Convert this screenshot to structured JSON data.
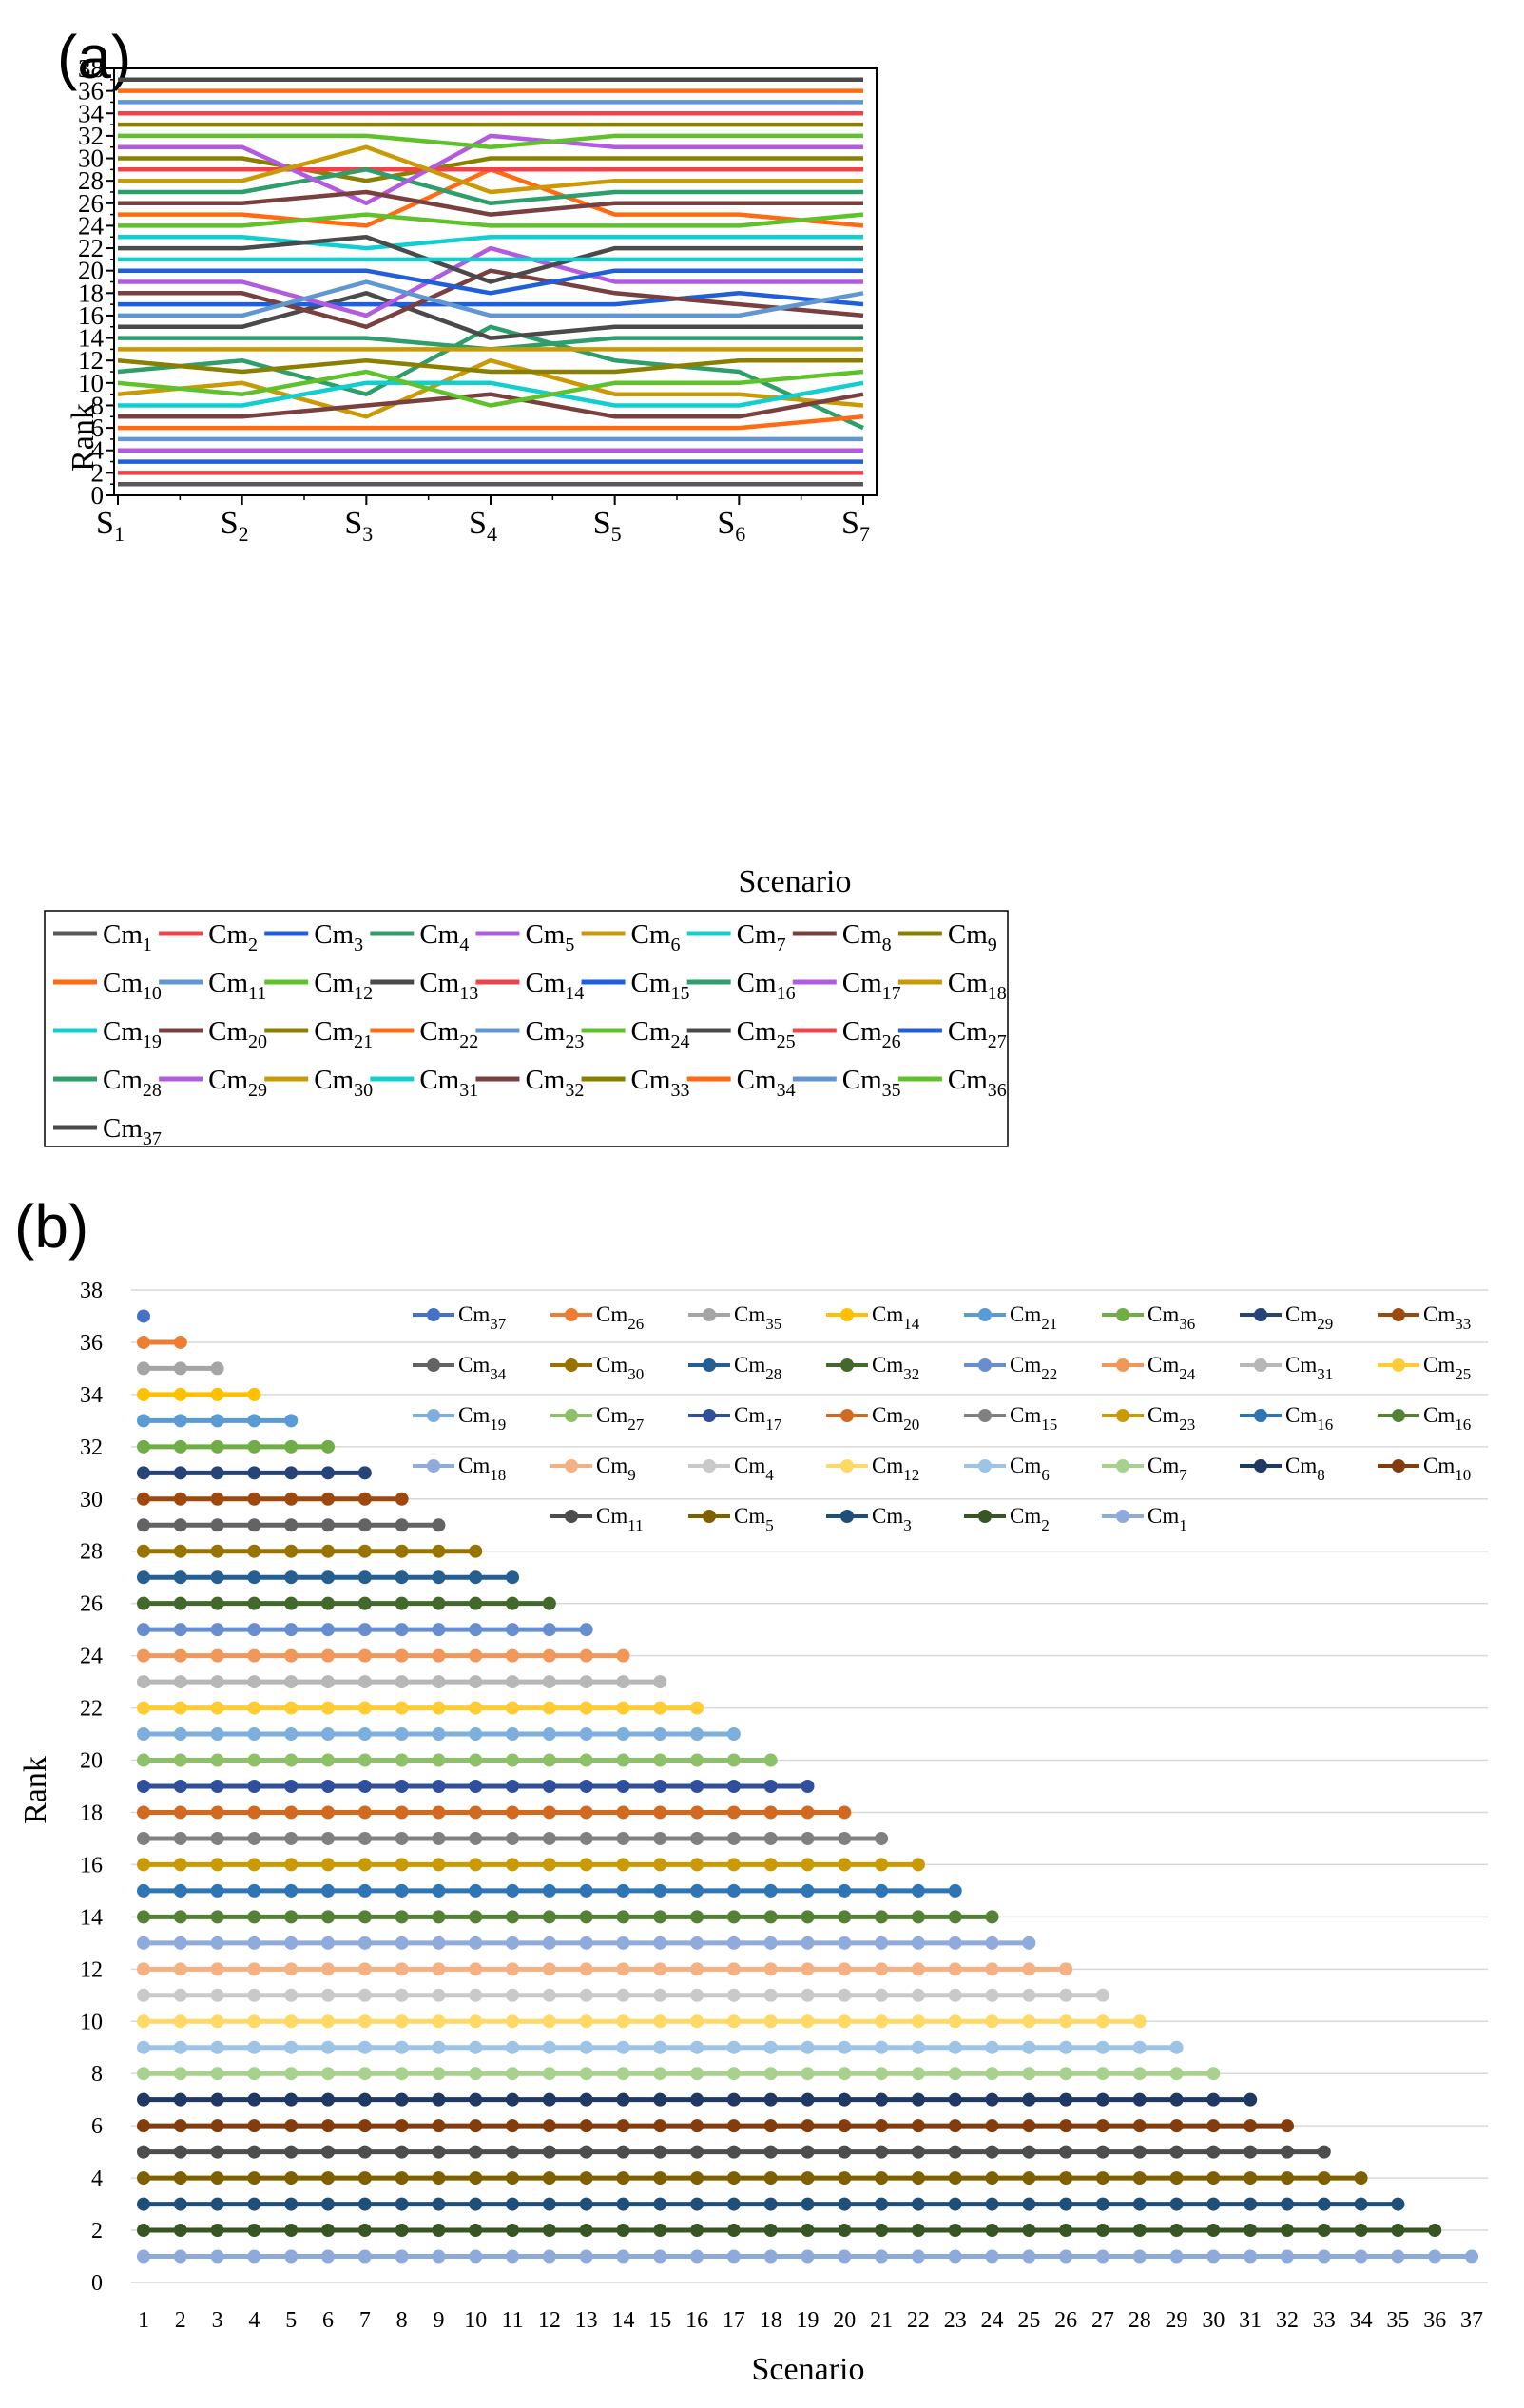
{
  "panel_a_label": "(a)",
  "panel_b_label": "(b)",
  "chart_data": [
    {
      "type": "line",
      "panel": "(a)",
      "xlabel": "Scenario",
      "ylabel": "Rank",
      "x_prefix": "S",
      "x_subs": [
        "1",
        "2",
        "3",
        "4",
        "5",
        "6",
        "7"
      ],
      "ylim": [
        0,
        38
      ],
      "yticks": [
        "0",
        "2",
        "4",
        "6",
        "8",
        "10",
        "12",
        "14",
        "16",
        "18",
        "20",
        "22",
        "24",
        "26",
        "28",
        "30",
        "32",
        "34",
        "36",
        "38"
      ],
      "legend_prefix": "Cm",
      "series": [
        {
          "sub": "1",
          "color": "#595959",
          "values": [
            1,
            1,
            1,
            1,
            1,
            1,
            1
          ]
        },
        {
          "sub": "2",
          "color": "#f0424a",
          "values": [
            2,
            2,
            2,
            2,
            2,
            2,
            2
          ]
        },
        {
          "sub": "3",
          "color": "#1f5fd9",
          "values": [
            3,
            3,
            3,
            3,
            3,
            3,
            3
          ]
        },
        {
          "sub": "4",
          "color": "#2e9e6a",
          "values": [
            11,
            12,
            9,
            15,
            12,
            11,
            6
          ]
        },
        {
          "sub": "5",
          "color": "#b25be0",
          "values": [
            4,
            4,
            4,
            4,
            4,
            4,
            4
          ]
        },
        {
          "sub": "6",
          "color": "#c99a06",
          "values": [
            9,
            10,
            7,
            12,
            9,
            9,
            8
          ]
        },
        {
          "sub": "7",
          "color": "#12cfcf",
          "values": [
            8,
            8,
            10,
            10,
            8,
            8,
            10
          ]
        },
        {
          "sub": "8",
          "color": "#7a3f3f",
          "values": [
            7,
            7,
            8,
            9,
            7,
            7,
            9
          ]
        },
        {
          "sub": "9",
          "color": "#8a8000",
          "values": [
            12,
            11,
            12,
            11,
            11,
            12,
            12
          ]
        },
        {
          "sub": "10",
          "color": "#ff6a13",
          "values": [
            6,
            6,
            6,
            6,
            6,
            6,
            7
          ]
        },
        {
          "sub": "11",
          "color": "#6096d2",
          "values": [
            5,
            5,
            5,
            5,
            5,
            5,
            5
          ]
        },
        {
          "sub": "12",
          "color": "#5fc22a",
          "values": [
            10,
            9,
            11,
            8,
            10,
            10,
            11
          ]
        },
        {
          "sub": "13",
          "color": "#4a4a4a",
          "values": [
            15,
            15,
            18,
            14,
            15,
            15,
            15
          ]
        },
        {
          "sub": "14",
          "color": "#f0424a",
          "values": [
            34,
            34,
            34,
            34,
            34,
            34,
            34
          ]
        },
        {
          "sub": "15",
          "color": "#1f5fd9",
          "values": [
            17,
            17,
            17,
            17,
            17,
            18,
            17
          ]
        },
        {
          "sub": "16",
          "color": "#2e9e6a",
          "values": [
            14,
            14,
            14,
            13,
            14,
            14,
            14
          ]
        },
        {
          "sub": "17",
          "color": "#b25be0",
          "values": [
            19,
            19,
            16,
            22,
            19,
            19,
            19
          ]
        },
        {
          "sub": "18",
          "color": "#c99a06",
          "values": [
            13,
            13,
            13,
            13,
            13,
            13,
            13
          ]
        },
        {
          "sub": "19",
          "color": "#12cfcf",
          "values": [
            23,
            23,
            22,
            23,
            23,
            23,
            23
          ]
        },
        {
          "sub": "20",
          "color": "#7a3f3f",
          "values": [
            18,
            18,
            15,
            20,
            18,
            17,
            16
          ]
        },
        {
          "sub": "21",
          "color": "#8a8000",
          "values": [
            30,
            30,
            28,
            30,
            30,
            30,
            30
          ]
        },
        {
          "sub": "22",
          "color": "#ff6a13",
          "values": [
            25,
            25,
            24,
            29,
            25,
            25,
            24
          ]
        },
        {
          "sub": "23",
          "color": "#6096d2",
          "values": [
            16,
            16,
            19,
            16,
            16,
            16,
            18
          ]
        },
        {
          "sub": "24",
          "color": "#5fc22a",
          "values": [
            24,
            24,
            25,
            24,
            24,
            24,
            25
          ]
        },
        {
          "sub": "25",
          "color": "#4a4a4a",
          "values": [
            22,
            22,
            23,
            19,
            22,
            22,
            22
          ]
        },
        {
          "sub": "26",
          "color": "#f0424a",
          "values": [
            29,
            29,
            29,
            29,
            29,
            29,
            29
          ]
        },
        {
          "sub": "27",
          "color": "#1f5fd9",
          "values": [
            20,
            20,
            20,
            18,
            20,
            20,
            20
          ]
        },
        {
          "sub": "28",
          "color": "#2e9e6a",
          "values": [
            27,
            27,
            29,
            26,
            27,
            27,
            27
          ]
        },
        {
          "sub": "29",
          "color": "#b25be0",
          "values": [
            31,
            31,
            26,
            32,
            31,
            31,
            31
          ]
        },
        {
          "sub": "30",
          "color": "#c99a06",
          "values": [
            28,
            28,
            31,
            27,
            28,
            28,
            28
          ]
        },
        {
          "sub": "31",
          "color": "#12cfcf",
          "values": [
            21,
            21,
            21,
            21,
            21,
            21,
            21
          ]
        },
        {
          "sub": "32",
          "color": "#7a3f3f",
          "values": [
            26,
            26,
            27,
            25,
            26,
            26,
            26
          ]
        },
        {
          "sub": "33",
          "color": "#8a8000",
          "values": [
            33,
            33,
            33,
            33,
            33,
            33,
            33
          ]
        },
        {
          "sub": "34",
          "color": "#ff6a13",
          "values": [
            36,
            36,
            36,
            36,
            36,
            36,
            36
          ]
        },
        {
          "sub": "35",
          "color": "#6096d2",
          "values": [
            35,
            35,
            35,
            35,
            35,
            35,
            35
          ]
        },
        {
          "sub": "36",
          "color": "#5fc22a",
          "values": [
            32,
            32,
            32,
            31,
            32,
            32,
            32
          ]
        },
        {
          "sub": "37",
          "color": "#4a4a4a",
          "values": [
            37,
            37,
            37,
            37,
            37,
            37,
            37
          ]
        }
      ]
    },
    {
      "type": "line",
      "panel": "(b)",
      "xlabel": "Scenario",
      "ylabel": "Rank",
      "x": [
        "1",
        "2",
        "3",
        "4",
        "5",
        "6",
        "7",
        "8",
        "9",
        "10",
        "11",
        "12",
        "13",
        "14",
        "15",
        "16",
        "17",
        "18",
        "19",
        "20",
        "21",
        "22",
        "23",
        "24",
        "25",
        "26",
        "27",
        "28",
        "29",
        "30",
        "31",
        "32",
        "33",
        "34",
        "35",
        "36",
        "37"
      ],
      "ylim": [
        0,
        38
      ],
      "yticks": [
        "0",
        "2",
        "4",
        "6",
        "8",
        "10",
        "12",
        "14",
        "16",
        "18",
        "20",
        "22",
        "24",
        "26",
        "28",
        "30",
        "32",
        "34",
        "36",
        "38"
      ],
      "legend_prefix": "Cm",
      "series": [
        {
          "sub": "37",
          "color": "#4472c4",
          "rank": 37,
          "length": 1
        },
        {
          "sub": "26",
          "color": "#ed7d31",
          "rank": 36,
          "length": 2
        },
        {
          "sub": "35",
          "color": "#a5a5a5",
          "rank": 35,
          "length": 3
        },
        {
          "sub": "14",
          "color": "#ffc000",
          "rank": 34,
          "length": 4
        },
        {
          "sub": "21",
          "color": "#5b9bd5",
          "rank": 33,
          "length": 5
        },
        {
          "sub": "36",
          "color": "#70ad47",
          "rank": 32,
          "length": 6
        },
        {
          "sub": "29",
          "color": "#264478",
          "rank": 31,
          "length": 7
        },
        {
          "sub": "33",
          "color": "#9e480e",
          "rank": 30,
          "length": 8
        },
        {
          "sub": "34",
          "color": "#636363",
          "rank": 29,
          "length": 9
        },
        {
          "sub": "30",
          "color": "#997300",
          "rank": 28,
          "length": 10
        },
        {
          "sub": "28",
          "color": "#255e91",
          "rank": 27,
          "length": 11
        },
        {
          "sub": "32",
          "color": "#43682b",
          "rank": 26,
          "length": 12
        },
        {
          "sub": "22",
          "color": "#698ed0",
          "rank": 25,
          "length": 13
        },
        {
          "sub": "24",
          "color": "#f1975a",
          "rank": 24,
          "length": 14
        },
        {
          "sub": "31",
          "color": "#b7b7b7",
          "rank": 23,
          "length": 15
        },
        {
          "sub": "25",
          "color": "#ffcd33",
          "rank": 22,
          "length": 16
        },
        {
          "sub": "19",
          "color": "#7cafdd",
          "rank": 21,
          "length": 17
        },
        {
          "sub": "27",
          "color": "#8cc168",
          "rank": 20,
          "length": 18
        },
        {
          "sub": "17",
          "color": "#2f4f9a",
          "rank": 19,
          "length": 19
        },
        {
          "sub": "20",
          "color": "#d2691e",
          "rank": 18,
          "length": 20
        },
        {
          "sub": "15",
          "color": "#808080",
          "rank": 17,
          "length": 21
        },
        {
          "sub": "23",
          "color": "#c99a06",
          "rank": 16,
          "length": 22
        },
        {
          "sub": "16",
          "color": "#2e75b6",
          "rank": 15,
          "length": 23
        },
        {
          "sub": "16",
          "color": "#548235",
          "rank": 14,
          "length": 24
        },
        {
          "sub": "18",
          "color": "#8faadc",
          "rank": 13,
          "length": 25
        },
        {
          "sub": "9",
          "color": "#f4b183",
          "rank": 12,
          "length": 26
        },
        {
          "sub": "4",
          "color": "#c9c9c9",
          "rank": 11,
          "length": 27
        },
        {
          "sub": "12",
          "color": "#ffd966",
          "rank": 10,
          "length": 28
        },
        {
          "sub": "6",
          "color": "#9dc3e6",
          "rank": 9,
          "length": 29
        },
        {
          "sub": "7",
          "color": "#a9d18e",
          "rank": 8,
          "length": 30
        },
        {
          "sub": "8",
          "color": "#1f3864",
          "rank": 7,
          "length": 31
        },
        {
          "sub": "10",
          "color": "#843c0c",
          "rank": 6,
          "length": 32
        },
        {
          "sub": "11",
          "color": "#4d4d4d",
          "rank": 5,
          "length": 33
        },
        {
          "sub": "5",
          "color": "#7f6000",
          "rank": 4,
          "length": 34
        },
        {
          "sub": "3",
          "color": "#1f4e79",
          "rank": 3,
          "length": 35
        },
        {
          "sub": "2",
          "color": "#375623",
          "rank": 2,
          "length": 36
        },
        {
          "sub": "1",
          "color": "#8eaadb",
          "rank": 1,
          "length": 37
        }
      ]
    }
  ]
}
